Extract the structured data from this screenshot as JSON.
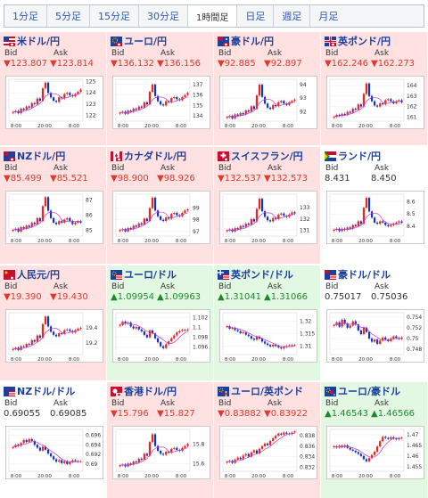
{
  "tabs": [
    {
      "label": "1分足",
      "active": false
    },
    {
      "label": "5分足",
      "active": false
    },
    {
      "label": "15分足",
      "active": false
    },
    {
      "label": "30分足",
      "active": false
    },
    {
      "label": "1時間足",
      "active": true
    },
    {
      "label": "日足",
      "active": false
    },
    {
      "label": "週足",
      "active": false
    },
    {
      "label": "月足",
      "active": false
    }
  ],
  "bid_label": "Bid",
  "ask_label": "Ask",
  "x_ticks": [
    "8:00",
    "20:00",
    "8:00"
  ],
  "colors": {
    "up_candle": "#e8261e",
    "down_candle": "#1533b8",
    "ma": "#cc33cc",
    "down_bg": "#ffe1e1",
    "up_bg": "#e3f8e3"
  },
  "pairs": [
    {
      "name": "米ドル/円",
      "flag": "usd",
      "trend": "down",
      "bid": "▼123.807",
      "ask": "▼123.814",
      "chart_data": {
        "type": "candlestick",
        "y_ticks": [
          "125",
          "124",
          "123",
          "122"
        ],
        "ylim": [
          121.5,
          125.2
        ],
        "close": [
          122.3,
          122.4,
          122.2,
          122.6,
          122.5,
          122.8,
          122.7,
          123.1,
          123.0,
          123.5,
          123.3,
          124.4,
          124.9,
          124.0,
          123.6,
          123.3,
          123.2,
          123.6,
          123.5,
          123.9,
          124.0,
          123.8,
          123.7,
          123.9,
          124.1,
          124.3
        ]
      }
    },
    {
      "name": "ユーロ/円",
      "flag": "eur",
      "trend": "down",
      "bid": "▼136.132",
      "ask": "▼136.156",
      "chart_data": {
        "type": "candlestick",
        "y_ticks": [
          "137",
          "136",
          "135",
          "134"
        ],
        "ylim": [
          133.5,
          137.5
        ],
        "close": [
          134.3,
          134.4,
          134.2,
          134.5,
          134.4,
          134.7,
          134.6,
          134.9,
          134.8,
          135.3,
          135.1,
          136.3,
          137.0,
          135.9,
          135.4,
          135.1,
          135.0,
          135.4,
          135.3,
          135.7,
          135.8,
          135.6,
          135.5,
          135.8,
          136.0,
          136.2
        ]
      }
    },
    {
      "name": "豪ドル/円",
      "flag": "aud",
      "trend": "down",
      "bid": "▼92.885",
      "ask": "▼92.897",
      "chart_data": {
        "type": "candlestick",
        "y_ticks": [
          "94",
          "93",
          "92"
        ],
        "ylim": [
          91.3,
          94.4
        ],
        "close": [
          91.6,
          91.7,
          91.5,
          91.8,
          91.7,
          91.9,
          91.8,
          92.1,
          92.0,
          92.4,
          92.2,
          93.2,
          94.0,
          93.1,
          92.6,
          92.3,
          92.2,
          92.5,
          92.4,
          92.7,
          92.8,
          92.6,
          92.5,
          92.7,
          92.8,
          92.9
        ]
      }
    },
    {
      "name": "英ポンド/円",
      "flag": "gbp",
      "trend": "down",
      "bid": "▼162.246",
      "ask": "▼162.273",
      "chart_data": {
        "type": "candlestick",
        "y_ticks": [
          "164",
          "163",
          "162",
          "161"
        ],
        "ylim": [
          160.6,
          164.6
        ],
        "close": [
          161.0,
          161.2,
          161.1,
          161.3,
          161.2,
          161.5,
          161.4,
          161.8,
          161.7,
          162.2,
          162.0,
          163.2,
          164.2,
          163.0,
          162.5,
          162.1,
          162.0,
          162.3,
          162.2,
          162.6,
          162.7,
          162.5,
          162.3,
          162.5,
          162.6,
          162.4
        ]
      }
    },
    {
      "name": "NZドル/円",
      "flag": "nzd",
      "trend": "down",
      "bid": "▼85.499",
      "ask": "▼85.521",
      "chart_data": {
        "type": "candlestick",
        "y_ticks": [
          "87",
          "86",
          "85"
        ],
        "ylim": [
          84.6,
          87.4
        ],
        "close": [
          85.0,
          85.1,
          84.9,
          85.2,
          85.1,
          85.3,
          85.2,
          85.5,
          85.4,
          85.8,
          85.6,
          86.6,
          87.2,
          86.3,
          85.8,
          85.5,
          85.4,
          85.6,
          85.5,
          85.7,
          85.8,
          85.6,
          85.4,
          85.5,
          85.6,
          85.5
        ]
      }
    },
    {
      "name": "カナダドル/円",
      "flag": "cad",
      "trend": "down",
      "bid": "▼98.900",
      "ask": "▼98.926",
      "chart_data": {
        "type": "candlestick",
        "y_ticks": [
          "99",
          "98",
          "97"
        ],
        "ylim": [
          96.6,
          100.2
        ],
        "close": [
          97.1,
          97.2,
          97.0,
          97.3,
          97.2,
          97.5,
          97.4,
          97.7,
          97.6,
          98.1,
          97.9,
          99.0,
          99.9,
          98.8,
          98.3,
          98.0,
          97.9,
          98.2,
          98.1,
          98.5,
          98.6,
          98.4,
          98.3,
          98.6,
          98.8,
          98.9
        ]
      }
    },
    {
      "name": "スイスフラン/円",
      "flag": "chf",
      "trend": "down",
      "bid": "▼132.537",
      "ask": "▼132.573",
      "chart_data": {
        "type": "candlestick",
        "y_ticks": [
          "133",
          "132",
          "131"
        ],
        "ylim": [
          130.5,
          134.2
        ],
        "close": [
          131.0,
          131.1,
          130.9,
          131.2,
          131.1,
          131.4,
          131.3,
          131.6,
          131.5,
          132.0,
          131.8,
          132.9,
          133.8,
          132.7,
          132.2,
          131.9,
          131.8,
          132.1,
          132.0,
          132.4,
          132.5,
          132.3,
          132.2,
          132.4,
          132.6,
          132.5
        ]
      }
    },
    {
      "name": "ランド/円",
      "flag": "zar",
      "trend": "neutral",
      "bid": "8.431",
      "ask": "8.450",
      "chart_data": {
        "type": "candlestick",
        "y_ticks": [
          "8.6",
          "8.5",
          "8.4"
        ],
        "ylim": [
          8.32,
          8.66
        ],
        "close": [
          8.37,
          8.38,
          8.36,
          8.38,
          8.37,
          8.39,
          8.38,
          8.41,
          8.4,
          8.44,
          8.42,
          8.55,
          8.63,
          8.52,
          8.47,
          8.43,
          8.42,
          8.44,
          8.43,
          8.41,
          8.4,
          8.41,
          8.42,
          8.43,
          8.44,
          8.43
        ]
      }
    },
    {
      "name": "人民元/円",
      "flag": "cny",
      "trend": "down",
      "bid": "▼19.390",
      "ask": "▼19.430",
      "chart_data": {
        "type": "candlestick",
        "y_ticks": [
          "19.4",
          "19.2"
        ],
        "ylim": [
          19.05,
          19.6
        ],
        "close": [
          19.12,
          19.14,
          19.11,
          19.16,
          19.15,
          19.19,
          19.18,
          19.24,
          19.22,
          19.3,
          19.27,
          19.45,
          19.55,
          19.42,
          19.35,
          19.31,
          19.29,
          19.33,
          19.32,
          19.37,
          19.38,
          19.36,
          19.34,
          19.37,
          19.39,
          19.4
        ]
      }
    },
    {
      "name": "ユーロ/ドル",
      "flag": "eurusd",
      "trend": "up",
      "bid": "▲1.09954",
      "ask": "▲1.09963",
      "chart_data": {
        "type": "candlestick",
        "y_ticks": [
          "1.102",
          "1.1",
          "1.098",
          "1.096"
        ],
        "ylim": [
          1.0945,
          1.103
        ],
        "close": [
          1.1005,
          1.1012,
          1.1008,
          1.101,
          1.1002,
          1.0998,
          1.1001,
          1.0996,
          1.0992,
          1.0985,
          1.098,
          1.0994,
          1.0988,
          1.0978,
          1.097,
          1.0962,
          1.0958,
          1.0966,
          1.0972,
          1.0978,
          1.0984,
          1.099,
          1.0993,
          1.0995,
          1.0994,
          1.0996
        ]
      }
    },
    {
      "name": "英ポンド/ドル",
      "flag": "gbpusd",
      "trend": "up",
      "bid": "▲1.31041",
      "ask": "▲1.31066",
      "chart_data": {
        "type": "candlestick",
        "y_ticks": [
          "1.32",
          "1.315",
          "1.31"
        ],
        "ylim": [
          1.3065,
          1.3235
        ],
        "close": [
          1.318,
          1.317,
          1.3174,
          1.3165,
          1.316,
          1.3152,
          1.3155,
          1.3146,
          1.314,
          1.313,
          1.3125,
          1.3138,
          1.313,
          1.3118,
          1.311,
          1.3104,
          1.3098,
          1.3105,
          1.31,
          1.3094,
          1.309,
          1.3096,
          1.31,
          1.3103,
          1.3102,
          1.3104
        ]
      }
    },
    {
      "name": "豪ドル/ドル",
      "flag": "audusd",
      "trend": "neutral",
      "bid": "0.75017",
      "ask": "0.75036",
      "chart_data": {
        "type": "candlestick",
        "y_ticks": [
          "0.754",
          "0.752",
          "0.75",
          "0.748"
        ],
        "ylim": [
          0.747,
          0.7548
        ],
        "close": [
          0.7525,
          0.753,
          0.7522,
          0.7535,
          0.7528,
          0.752,
          0.7524,
          0.7532,
          0.7526,
          0.7515,
          0.7508,
          0.752,
          0.7512,
          0.75,
          0.7494,
          0.7498,
          0.749,
          0.7496,
          0.7502,
          0.7498,
          0.7495,
          0.75,
          0.7504,
          0.7501,
          0.7499,
          0.7502
        ]
      }
    },
    {
      "name": "NZドル/ドル",
      "flag": "nzdusd",
      "trend": "neutral",
      "bid": "0.69055",
      "ask": "0.69085",
      "chart_data": {
        "type": "candlestick",
        "y_ticks": [
          "0.696",
          "0.694",
          "0.692",
          "0.69"
        ],
        "ylim": [
          0.6885,
          0.6972
        ],
        "close": [
          0.6935,
          0.694,
          0.6938,
          0.6944,
          0.695,
          0.6946,
          0.6952,
          0.6948,
          0.694,
          0.6934,
          0.6928,
          0.6936,
          0.693,
          0.6922,
          0.6916,
          0.691,
          0.6905,
          0.6908,
          0.6902,
          0.6906,
          0.69,
          0.6904,
          0.6908,
          0.6906,
          0.6905,
          0.6906
        ]
      }
    },
    {
      "name": "香港ドル/円",
      "flag": "hkd",
      "trend": "down",
      "bid": "▼15.796",
      "ask": "▼15.827",
      "chart_data": {
        "type": "candlestick",
        "y_ticks": [
          "15.8",
          "15.6"
        ],
        "ylim": [
          15.52,
          15.95
        ],
        "close": [
          15.58,
          15.59,
          15.57,
          15.6,
          15.59,
          15.62,
          15.61,
          15.65,
          15.64,
          15.7,
          15.68,
          15.82,
          15.9,
          15.78,
          15.73,
          15.7,
          15.69,
          15.72,
          15.71,
          15.75,
          15.76,
          15.74,
          15.73,
          15.76,
          15.78,
          15.8
        ]
      }
    },
    {
      "name": "ユーロ/英ポンド",
      "flag": "eurgbp",
      "trend": "down",
      "bid": "▼0.83882",
      "ask": "▼0.83922",
      "chart_data": {
        "type": "candlestick",
        "y_ticks": [
          "0.838",
          "0.836",
          "0.834",
          "0.832"
        ],
        "ylim": [
          0.8312,
          0.8392
        ],
        "close": [
          0.833,
          0.8332,
          0.8328,
          0.8334,
          0.8338,
          0.8335,
          0.8342,
          0.8345,
          0.834,
          0.8348,
          0.8352,
          0.8346,
          0.8355,
          0.836,
          0.8365,
          0.8362,
          0.837,
          0.8375,
          0.838,
          0.8384,
          0.8382,
          0.8386,
          0.8384,
          0.8383,
          0.8386,
          0.8388
        ]
      }
    },
    {
      "name": "ユーロ/豪ドル",
      "flag": "euraud",
      "trend": "up",
      "bid": "▲1.46543",
      "ask": "▲1.46566",
      "chart_data": {
        "type": "candlestick",
        "y_ticks": [
          "1.47",
          "1.465",
          "1.46",
          "1.455"
        ],
        "ylim": [
          1.4528,
          1.4725
        ],
        "close": [
          1.4645,
          1.464,
          1.4648,
          1.4642,
          1.465,
          1.4638,
          1.463,
          1.4625,
          1.4618,
          1.461,
          1.46,
          1.4585,
          1.4575,
          1.459,
          1.4605,
          1.462,
          1.4645,
          1.467,
          1.469,
          1.4685,
          1.468,
          1.4688,
          1.4682,
          1.4678,
          1.4684,
          1.4686
        ]
      }
    }
  ]
}
